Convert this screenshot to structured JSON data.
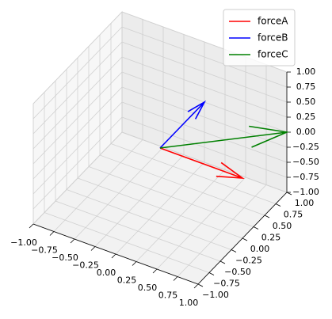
{
  "chart_data": {
    "type": "quiver3d",
    "origin": [
      0,
      0,
      0
    ],
    "series": [
      {
        "name": "forceA",
        "color": "#ff0000",
        "values": [
          1,
          0,
          0
        ]
      },
      {
        "name": "forceB",
        "color": "#0000ff",
        "values": [
          0,
          1,
          0
        ]
      },
      {
        "name": "forceC",
        "color": "#008000",
        "values": [
          1,
          1,
          0
        ]
      }
    ],
    "xlim": [
      -1,
      1
    ],
    "ylim": [
      -1,
      1
    ],
    "zlim": [
      -1,
      1
    ],
    "xticks": [
      {
        "value": -1,
        "label": "−1.00"
      },
      {
        "value": -0.75,
        "label": "−0.75"
      },
      {
        "value": -0.5,
        "label": "−0.50"
      },
      {
        "value": -0.25,
        "label": "−0.25"
      },
      {
        "value": 0,
        "label": "0.00"
      },
      {
        "value": 0.25,
        "label": "0.25"
      },
      {
        "value": 0.5,
        "label": "0.50"
      },
      {
        "value": 0.75,
        "label": "0.75"
      },
      {
        "value": 1,
        "label": "1.00"
      }
    ],
    "yticks": [
      {
        "value": -1,
        "label": "−1.00"
      },
      {
        "value": -0.75,
        "label": "−0.75"
      },
      {
        "value": -0.5,
        "label": "−0.50"
      },
      {
        "value": -0.25,
        "label": "−0.25"
      },
      {
        "value": 0,
        "label": "0.00"
      },
      {
        "value": 0.25,
        "label": "0.25"
      },
      {
        "value": 0.5,
        "label": "0.50"
      },
      {
        "value": 0.75,
        "label": "0.75"
      },
      {
        "value": 1,
        "label": "1.00"
      }
    ],
    "zticks": [
      {
        "value": -1,
        "label": "−1.00"
      },
      {
        "value": -0.75,
        "label": "−0.75"
      },
      {
        "value": -0.5,
        "label": "−0.50"
      },
      {
        "value": -0.25,
        "label": "−0.25"
      },
      {
        "value": 0,
        "label": "0.00"
      },
      {
        "value": 0.25,
        "label": "0.25"
      },
      {
        "value": 0.5,
        "label": "0.50"
      },
      {
        "value": 0.75,
        "label": "0.75"
      },
      {
        "value": 1,
        "label": "1.00"
      }
    ],
    "grid": true,
    "legend": "upper right"
  }
}
